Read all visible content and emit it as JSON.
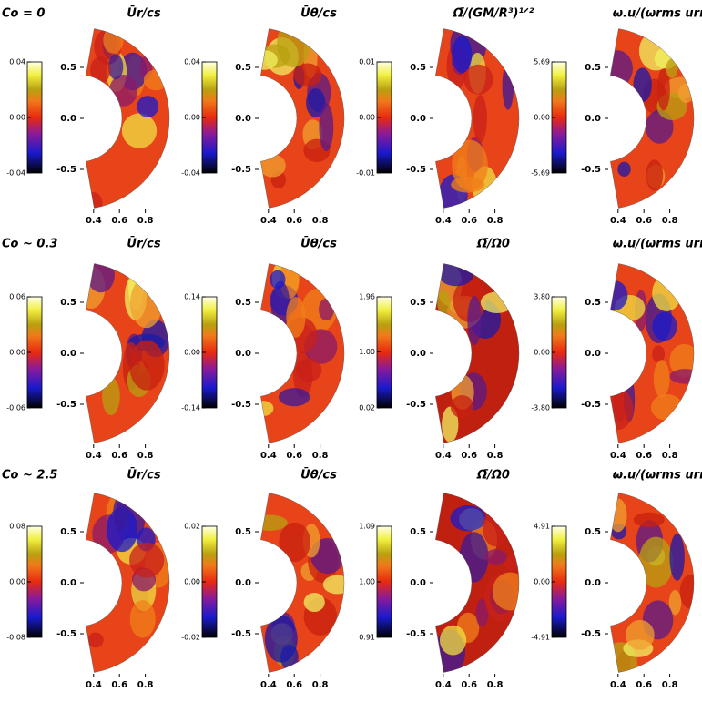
{
  "figure": {
    "x_ticks": [
      {
        "value": 0.4,
        "label": "0.4"
      },
      {
        "value": 0.6,
        "label": "0.6"
      },
      {
        "value": 0.8,
        "label": "0.8"
      }
    ],
    "y_ticks": [
      {
        "value": 0.5,
        "label": "0.5"
      },
      {
        "value": 0.0,
        "label": "0.0"
      },
      {
        "value": -0.5,
        "label": "-0.5"
      }
    ],
    "rows": [
      {
        "label": "Co = 0",
        "panels": [
          {
            "title": "Ūr/cs",
            "colorbar_ticks": [
              {
                "value": 0.04,
                "label": "0.04"
              },
              {
                "value": 0.0,
                "label": "0.00"
              },
              {
                "value": -0.04,
                "label": "-0.04"
              }
            ]
          },
          {
            "title": "Ūθ/cs",
            "colorbar_ticks": [
              {
                "value": 0.04,
                "label": "0.04"
              },
              {
                "value": 0.0,
                "label": "0.00"
              },
              {
                "value": -0.04,
                "label": "-0.04"
              }
            ]
          },
          {
            "title": "Ω̄/(GM/R³)¹ᐟ²",
            "colorbar_ticks": [
              {
                "value": 0.01,
                "label": "0.01"
              },
              {
                "value": 0.0,
                "label": "0.00"
              },
              {
                "value": -0.01,
                "label": "-0.01"
              }
            ]
          },
          {
            "title": "ω.u/(ωrms urms)",
            "colorbar_ticks": [
              {
                "value": 5.69,
                "label": "5.69"
              },
              {
                "value": 0.0,
                "label": "0.00"
              },
              {
                "value": -5.69,
                "label": "-5.69"
              }
            ]
          }
        ]
      },
      {
        "label": "Co ~ 0.3",
        "panels": [
          {
            "title": "Ūr/cs",
            "colorbar_ticks": [
              {
                "value": 0.06,
                "label": "0.06"
              },
              {
                "value": 0.0,
                "label": "0.00"
              },
              {
                "value": -0.06,
                "label": "-0.06"
              }
            ]
          },
          {
            "title": "Ūθ/cs",
            "colorbar_ticks": [
              {
                "value": 0.14,
                "label": "0.14"
              },
              {
                "value": 0.0,
                "label": "0.00"
              },
              {
                "value": -0.14,
                "label": "-0.14"
              }
            ]
          },
          {
            "title": "Ω̄/Ω0",
            "colorbar_ticks": [
              {
                "value": 1.96,
                "label": "1.96"
              },
              {
                "value": 1.0,
                "label": "1.00"
              },
              {
                "value": 0.02,
                "label": "0.02"
              }
            ]
          },
          {
            "title": "ω.u/(ωrms urms)",
            "colorbar_ticks": [
              {
                "value": 3.8,
                "label": "3.80"
              },
              {
                "value": 0.0,
                "label": "0.00"
              },
              {
                "value": -3.8,
                "label": "-3.80"
              }
            ]
          }
        ]
      },
      {
        "label": "Co ~ 2.5",
        "panels": [
          {
            "title": "Ūr/cs",
            "colorbar_ticks": [
              {
                "value": 0.08,
                "label": "0.08"
              },
              {
                "value": 0.0,
                "label": "0.00"
              },
              {
                "value": -0.08,
                "label": "-0.08"
              }
            ]
          },
          {
            "title": "Ūθ/cs",
            "colorbar_ticks": [
              {
                "value": 0.02,
                "label": "0.02"
              },
              {
                "value": 0.0,
                "label": "0.00"
              },
              {
                "value": -0.02,
                "label": "-0.02"
              }
            ]
          },
          {
            "title": "Ω̄/Ω0",
            "colorbar_ticks": [
              {
                "value": 1.09,
                "label": "1.09"
              },
              {
                "value": 1.0,
                "label": "1.00"
              },
              {
                "value": 0.91,
                "label": "0.91"
              }
            ]
          },
          {
            "title": "ω.u/(ωrms urms)",
            "colorbar_ticks": [
              {
                "value": 4.91,
                "label": "4.91"
              },
              {
                "value": 0.0,
                "label": "0.00"
              },
              {
                "value": -4.91,
                "label": "-4.91"
              }
            ]
          }
        ]
      }
    ]
  }
}
